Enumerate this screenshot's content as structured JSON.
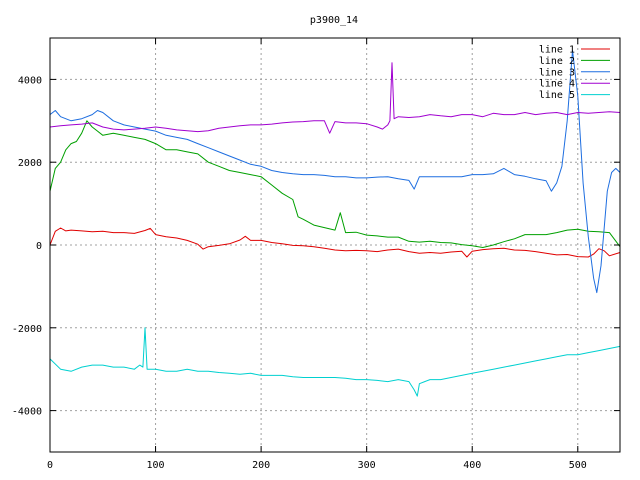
{
  "chart_data": {
    "type": "line",
    "title": "p3900_14",
    "xlabel": "",
    "ylabel": "",
    "xlim": [
      0,
      540
    ],
    "ylim": [
      -5000,
      5000
    ],
    "x_ticks": [
      0,
      100,
      200,
      300,
      400,
      500
    ],
    "y_ticks": [
      -4000,
      -2000,
      0,
      2000,
      4000
    ],
    "grid": true,
    "legend_position": "top-right",
    "series": [
      {
        "name": "line 1",
        "color": "#e00000",
        "points": [
          [
            0,
            0
          ],
          [
            5,
            330
          ],
          [
            10,
            410
          ],
          [
            15,
            340
          ],
          [
            20,
            360
          ],
          [
            30,
            340
          ],
          [
            40,
            320
          ],
          [
            50,
            330
          ],
          [
            60,
            300
          ],
          [
            70,
            300
          ],
          [
            80,
            280
          ],
          [
            90,
            350
          ],
          [
            95,
            400
          ],
          [
            100,
            250
          ],
          [
            110,
            200
          ],
          [
            120,
            170
          ],
          [
            130,
            110
          ],
          [
            140,
            20
          ],
          [
            145,
            -100
          ],
          [
            150,
            -40
          ],
          [
            160,
            -10
          ],
          [
            170,
            30
          ],
          [
            180,
            120
          ],
          [
            185,
            210
          ],
          [
            190,
            110
          ],
          [
            200,
            110
          ],
          [
            210,
            60
          ],
          [
            220,
            30
          ],
          [
            230,
            -10
          ],
          [
            240,
            -20
          ],
          [
            250,
            -40
          ],
          [
            260,
            -80
          ],
          [
            270,
            -120
          ],
          [
            280,
            -140
          ],
          [
            290,
            -130
          ],
          [
            300,
            -140
          ],
          [
            310,
            -160
          ],
          [
            320,
            -120
          ],
          [
            330,
            -100
          ],
          [
            340,
            -160
          ],
          [
            350,
            -200
          ],
          [
            360,
            -180
          ],
          [
            370,
            -200
          ],
          [
            380,
            -170
          ],
          [
            390,
            -150
          ],
          [
            395,
            -290
          ],
          [
            400,
            -150
          ],
          [
            410,
            -110
          ],
          [
            420,
            -90
          ],
          [
            430,
            -80
          ],
          [
            440,
            -120
          ],
          [
            450,
            -130
          ],
          [
            460,
            -160
          ],
          [
            470,
            -200
          ],
          [
            480,
            -240
          ],
          [
            490,
            -230
          ],
          [
            500,
            -280
          ],
          [
            510,
            -290
          ],
          [
            515,
            -220
          ],
          [
            520,
            -90
          ],
          [
            525,
            -140
          ],
          [
            530,
            -260
          ],
          [
            540,
            -180
          ]
        ]
      },
      {
        "name": "line 2",
        "color": "#00a000",
        "points": [
          [
            0,
            1300
          ],
          [
            5,
            1850
          ],
          [
            10,
            2000
          ],
          [
            15,
            2300
          ],
          [
            20,
            2450
          ],
          [
            25,
            2500
          ],
          [
            30,
            2700
          ],
          [
            35,
            3000
          ],
          [
            40,
            2850
          ],
          [
            45,
            2750
          ],
          [
            50,
            2650
          ],
          [
            60,
            2700
          ],
          [
            70,
            2650
          ],
          [
            80,
            2600
          ],
          [
            90,
            2550
          ],
          [
            100,
            2450
          ],
          [
            110,
            2300
          ],
          [
            120,
            2300
          ],
          [
            130,
            2250
          ],
          [
            140,
            2200
          ],
          [
            150,
            2000
          ],
          [
            160,
            1900
          ],
          [
            170,
            1800
          ],
          [
            180,
            1750
          ],
          [
            190,
            1700
          ],
          [
            200,
            1650
          ],
          [
            210,
            1450
          ],
          [
            220,
            1250
          ],
          [
            230,
            1100
          ],
          [
            235,
            680
          ],
          [
            240,
            620
          ],
          [
            250,
            480
          ],
          [
            260,
            420
          ],
          [
            270,
            360
          ],
          [
            275,
            780
          ],
          [
            280,
            300
          ],
          [
            290,
            310
          ],
          [
            300,
            240
          ],
          [
            310,
            220
          ],
          [
            320,
            190
          ],
          [
            330,
            190
          ],
          [
            340,
            90
          ],
          [
            350,
            70
          ],
          [
            360,
            90
          ],
          [
            370,
            60
          ],
          [
            380,
            50
          ],
          [
            390,
            10
          ],
          [
            400,
            -20
          ],
          [
            410,
            -60
          ],
          [
            420,
            0
          ],
          [
            430,
            80
          ],
          [
            440,
            150
          ],
          [
            450,
            250
          ],
          [
            460,
            250
          ],
          [
            470,
            250
          ],
          [
            480,
            300
          ],
          [
            490,
            360
          ],
          [
            500,
            380
          ],
          [
            510,
            330
          ],
          [
            520,
            320
          ],
          [
            530,
            300
          ],
          [
            540,
            -40
          ]
        ]
      },
      {
        "name": "line 3",
        "color": "#1e6ee0",
        "points": [
          [
            0,
            3150
          ],
          [
            5,
            3250
          ],
          [
            10,
            3100
          ],
          [
            20,
            3000
          ],
          [
            30,
            3050
          ],
          [
            40,
            3150
          ],
          [
            45,
            3250
          ],
          [
            50,
            3200
          ],
          [
            60,
            3000
          ],
          [
            70,
            2900
          ],
          [
            80,
            2850
          ],
          [
            90,
            2800
          ],
          [
            100,
            2750
          ],
          [
            110,
            2650
          ],
          [
            120,
            2600
          ],
          [
            130,
            2550
          ],
          [
            140,
            2450
          ],
          [
            150,
            2350
          ],
          [
            160,
            2250
          ],
          [
            170,
            2150
          ],
          [
            180,
            2050
          ],
          [
            190,
            1950
          ],
          [
            200,
            1900
          ],
          [
            210,
            1800
          ],
          [
            220,
            1750
          ],
          [
            230,
            1720
          ],
          [
            240,
            1700
          ],
          [
            250,
            1700
          ],
          [
            260,
            1680
          ],
          [
            270,
            1650
          ],
          [
            280,
            1650
          ],
          [
            290,
            1620
          ],
          [
            300,
            1620
          ],
          [
            310,
            1640
          ],
          [
            320,
            1650
          ],
          [
            330,
            1600
          ],
          [
            340,
            1560
          ],
          [
            345,
            1350
          ],
          [
            350,
            1650
          ],
          [
            360,
            1650
          ],
          [
            370,
            1650
          ],
          [
            380,
            1650
          ],
          [
            390,
            1650
          ],
          [
            400,
            1700
          ],
          [
            410,
            1700
          ],
          [
            420,
            1720
          ],
          [
            430,
            1850
          ],
          [
            440,
            1700
          ],
          [
            450,
            1660
          ],
          [
            460,
            1600
          ],
          [
            470,
            1550
          ],
          [
            475,
            1300
          ],
          [
            480,
            1500
          ],
          [
            485,
            1900
          ],
          [
            490,
            3000
          ],
          [
            495,
            4700
          ],
          [
            500,
            3600
          ],
          [
            505,
            1500
          ],
          [
            510,
            200
          ],
          [
            515,
            -800
          ],
          [
            518,
            -1150
          ],
          [
            522,
            -500
          ],
          [
            528,
            1300
          ],
          [
            532,
            1750
          ],
          [
            536,
            1850
          ],
          [
            540,
            1750
          ]
        ]
      },
      {
        "name": "line 4",
        "color": "#a000d0",
        "points": [
          [
            0,
            2850
          ],
          [
            10,
            2880
          ],
          [
            20,
            2900
          ],
          [
            30,
            2920
          ],
          [
            40,
            2950
          ],
          [
            50,
            2850
          ],
          [
            60,
            2800
          ],
          [
            70,
            2780
          ],
          [
            80,
            2800
          ],
          [
            90,
            2820
          ],
          [
            100,
            2850
          ],
          [
            110,
            2820
          ],
          [
            120,
            2780
          ],
          [
            130,
            2760
          ],
          [
            140,
            2740
          ],
          [
            150,
            2760
          ],
          [
            160,
            2820
          ],
          [
            170,
            2850
          ],
          [
            180,
            2880
          ],
          [
            190,
            2900
          ],
          [
            200,
            2900
          ],
          [
            210,
            2920
          ],
          [
            220,
            2950
          ],
          [
            230,
            2970
          ],
          [
            240,
            2980
          ],
          [
            250,
            3000
          ],
          [
            260,
            3000
          ],
          [
            265,
            2700
          ],
          [
            270,
            2980
          ],
          [
            280,
            2950
          ],
          [
            290,
            2950
          ],
          [
            300,
            2930
          ],
          [
            310,
            2850
          ],
          [
            315,
            2800
          ],
          [
            320,
            2900
          ],
          [
            322,
            3000
          ],
          [
            324,
            4400
          ],
          [
            326,
            3050
          ],
          [
            330,
            3100
          ],
          [
            340,
            3080
          ],
          [
            350,
            3100
          ],
          [
            360,
            3150
          ],
          [
            370,
            3120
          ],
          [
            380,
            3100
          ],
          [
            390,
            3150
          ],
          [
            400,
            3150
          ],
          [
            410,
            3100
          ],
          [
            420,
            3180
          ],
          [
            430,
            3150
          ],
          [
            440,
            3150
          ],
          [
            450,
            3200
          ],
          [
            460,
            3150
          ],
          [
            470,
            3180
          ],
          [
            480,
            3200
          ],
          [
            490,
            3150
          ],
          [
            500,
            3200
          ],
          [
            510,
            3180
          ],
          [
            520,
            3200
          ],
          [
            530,
            3220
          ],
          [
            540,
            3200
          ]
        ]
      },
      {
        "name": "line 5",
        "color": "#00d0d0",
        "points": [
          [
            0,
            -2750
          ],
          [
            10,
            -3000
          ],
          [
            20,
            -3050
          ],
          [
            30,
            -2950
          ],
          [
            40,
            -2900
          ],
          [
            50,
            -2900
          ],
          [
            60,
            -2950
          ],
          [
            70,
            -2950
          ],
          [
            80,
            -3000
          ],
          [
            85,
            -2900
          ],
          [
            88,
            -2950
          ],
          [
            90,
            -2000
          ],
          [
            92,
            -3000
          ],
          [
            100,
            -3000
          ],
          [
            110,
            -3050
          ],
          [
            120,
            -3050
          ],
          [
            130,
            -3000
          ],
          [
            140,
            -3050
          ],
          [
            150,
            -3050
          ],
          [
            160,
            -3080
          ],
          [
            170,
            -3100
          ],
          [
            180,
            -3120
          ],
          [
            190,
            -3100
          ],
          [
            200,
            -3150
          ],
          [
            210,
            -3150
          ],
          [
            220,
            -3150
          ],
          [
            230,
            -3180
          ],
          [
            240,
            -3200
          ],
          [
            250,
            -3200
          ],
          [
            260,
            -3200
          ],
          [
            270,
            -3200
          ],
          [
            280,
            -3220
          ],
          [
            290,
            -3250
          ],
          [
            300,
            -3250
          ],
          [
            310,
            -3270
          ],
          [
            320,
            -3300
          ],
          [
            330,
            -3250
          ],
          [
            340,
            -3300
          ],
          [
            345,
            -3500
          ],
          [
            348,
            -3650
          ],
          [
            350,
            -3350
          ],
          [
            355,
            -3300
          ],
          [
            360,
            -3250
          ],
          [
            370,
            -3250
          ],
          [
            380,
            -3200
          ],
          [
            390,
            -3150
          ],
          [
            400,
            -3100
          ],
          [
            410,
            -3050
          ],
          [
            420,
            -3000
          ],
          [
            430,
            -2950
          ],
          [
            440,
            -2900
          ],
          [
            450,
            -2850
          ],
          [
            460,
            -2800
          ],
          [
            470,
            -2750
          ],
          [
            480,
            -2700
          ],
          [
            490,
            -2650
          ],
          [
            500,
            -2650
          ],
          [
            510,
            -2600
          ],
          [
            520,
            -2550
          ],
          [
            530,
            -2500
          ],
          [
            540,
            -2450
          ]
        ]
      }
    ]
  }
}
